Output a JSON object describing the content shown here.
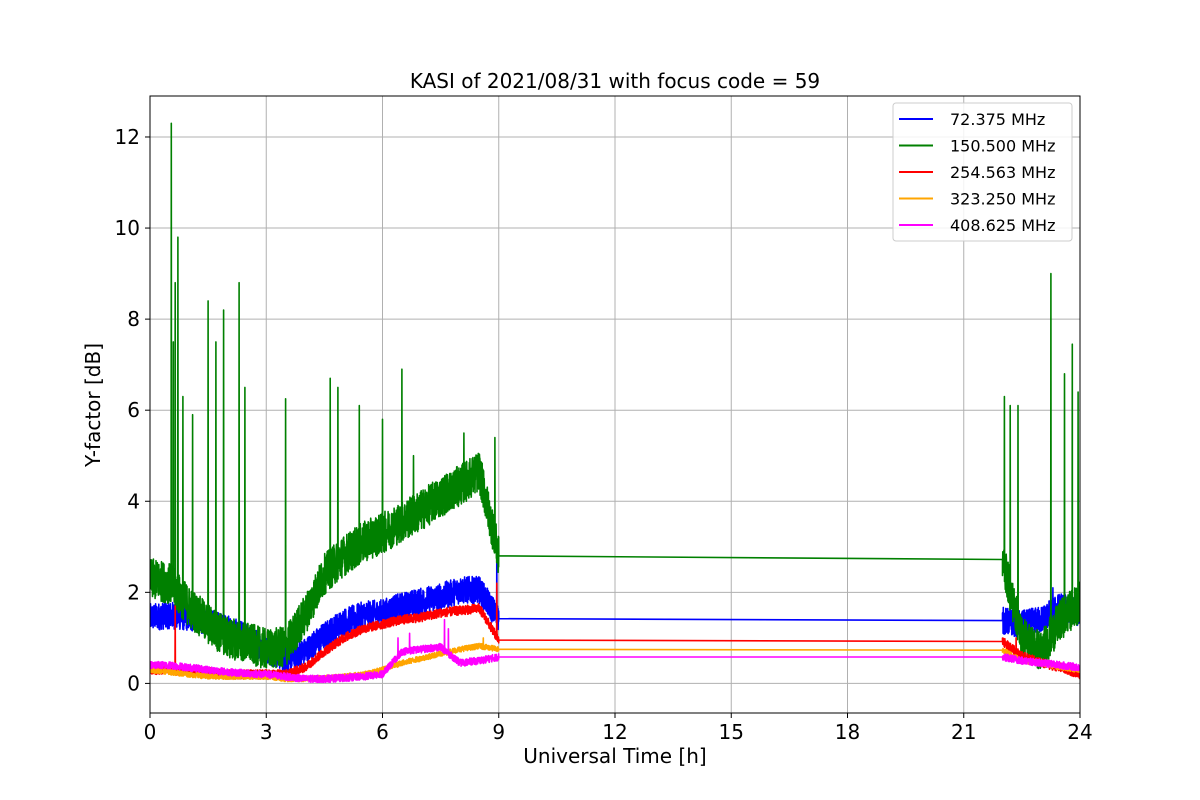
{
  "chart_data": {
    "type": "line",
    "title": "KASI of 2021/08/31 with focus code = 59",
    "xlabel": "Universal Time [h]",
    "ylabel": "Y-factor [dB]",
    "xlim": [
      0,
      24
    ],
    "ylim": [
      -0.65,
      12.9
    ],
    "x_ticks": [
      0,
      3,
      6,
      9,
      12,
      15,
      18,
      21,
      24
    ],
    "y_ticks": [
      0,
      2,
      4,
      6,
      8,
      10,
      12
    ],
    "x_tick_labels": [
      "0",
      "3",
      "6",
      "9",
      "12",
      "15",
      "18",
      "21",
      "24"
    ],
    "y_tick_labels": [
      "0",
      "2",
      "4",
      "6",
      "8",
      "10",
      "12"
    ],
    "grid": true,
    "legend_position": "top-right",
    "data_gap": [
      9.0,
      22.0
    ],
    "series": [
      {
        "name": " 72.375 MHz",
        "color": "#0000ff",
        "noise": 0.3,
        "x": [
          0,
          0.5,
          1,
          1.5,
          2,
          2.5,
          3,
          3.5,
          4,
          4.5,
          5,
          5.5,
          6,
          6.5,
          7,
          7.5,
          8,
          8.5,
          9,
          22,
          22.5,
          23,
          23.5,
          24
        ],
        "y": [
          1.45,
          1.5,
          1.45,
          1.35,
          1.2,
          1.0,
          0.75,
          0.55,
          0.7,
          1.05,
          1.35,
          1.5,
          1.55,
          1.7,
          1.8,
          1.9,
          2.05,
          2.05,
          1.42,
          1.38,
          1.3,
          1.4,
          1.7,
          1.55
        ],
        "spikes": [
          [
            8.95,
            2.8
          ],
          [
            23.3,
            2.1
          ],
          [
            22.35,
            1.7
          ]
        ]
      },
      {
        "name": "150.500 MHz",
        "color": "#008000",
        "noise": 0.45,
        "x": [
          0,
          0.5,
          1,
          1.5,
          2,
          2.5,
          3,
          3.5,
          4,
          4.5,
          5,
          5.5,
          6,
          6.5,
          7,
          7.5,
          8,
          8.5,
          9,
          22,
          22.5,
          23,
          23.5,
          24
        ],
        "y": [
          2.3,
          2.2,
          1.7,
          1.3,
          1.0,
          0.9,
          0.75,
          0.8,
          1.5,
          2.4,
          2.8,
          3.1,
          3.3,
          3.55,
          3.8,
          4.1,
          4.35,
          4.65,
          2.8,
          2.72,
          1.0,
          0.7,
          1.4,
          1.8
        ],
        "spikes": [
          [
            0.55,
            12.3
          ],
          [
            0.65,
            8.8
          ],
          [
            0.72,
            9.8
          ],
          [
            0.6,
            7.5
          ],
          [
            0.85,
            6.3
          ],
          [
            1.1,
            5.9
          ],
          [
            1.5,
            8.4
          ],
          [
            1.9,
            8.2
          ],
          [
            2.3,
            8.8
          ],
          [
            2.45,
            6.5
          ],
          [
            1.7,
            7.5
          ],
          [
            3.5,
            6.25
          ],
          [
            4.65,
            6.7
          ],
          [
            4.85,
            6.5
          ],
          [
            5.4,
            6.1
          ],
          [
            6.0,
            5.8
          ],
          [
            6.5,
            6.9
          ],
          [
            6.8,
            5.0
          ],
          [
            8.1,
            5.5
          ],
          [
            8.9,
            5.4
          ],
          [
            22.05,
            6.3
          ],
          [
            22.2,
            6.1
          ],
          [
            22.4,
            6.1
          ],
          [
            23.25,
            9.0
          ],
          [
            23.6,
            6.8
          ],
          [
            23.8,
            7.45
          ],
          [
            23.95,
            6.4
          ]
        ]
      },
      {
        "name": "254.563 MHz",
        "color": "#ff0000",
        "noise": 0.1,
        "x": [
          0,
          0.5,
          1,
          1.5,
          2,
          2.5,
          3,
          3.5,
          4,
          4.5,
          5,
          5.5,
          6,
          6.5,
          7,
          7.5,
          8,
          8.5,
          9,
          22,
          22.5,
          23,
          23.5,
          24
        ],
        "y": [
          0.3,
          0.3,
          0.25,
          0.25,
          0.2,
          0.2,
          0.2,
          0.2,
          0.35,
          0.7,
          1.0,
          1.2,
          1.3,
          1.4,
          1.45,
          1.55,
          1.6,
          1.65,
          0.95,
          0.92,
          0.6,
          0.45,
          0.35,
          0.2
        ],
        "spikes": [
          [
            0.65,
            1.7
          ],
          [
            8.95,
            2.2
          ],
          [
            22.35,
            1.0
          ]
        ]
      },
      {
        "name": "323.250 MHz",
        "color": "#ffa500",
        "noise": 0.06,
        "x": [
          0,
          0.5,
          1,
          1.5,
          2,
          2.5,
          3,
          3.5,
          4,
          4.5,
          5,
          5.5,
          6,
          6.5,
          7,
          7.5,
          8,
          8.5,
          9,
          22,
          22.5,
          23,
          23.5,
          24
        ],
        "y": [
          0.3,
          0.25,
          0.2,
          0.15,
          0.15,
          0.15,
          0.15,
          0.1,
          0.1,
          0.12,
          0.15,
          0.2,
          0.3,
          0.45,
          0.55,
          0.65,
          0.75,
          0.82,
          0.75,
          0.73,
          0.5,
          0.45,
          0.35,
          0.3
        ],
        "spikes": [
          [
            8.6,
            1.0
          ]
        ]
      },
      {
        "name": "408.625 MHz",
        "color": "#ff00ff",
        "noise": 0.08,
        "x": [
          0,
          0.5,
          1,
          1.5,
          2,
          2.5,
          3,
          3.5,
          4,
          4.5,
          5,
          5.5,
          6,
          6.5,
          7,
          7.5,
          8,
          8.5,
          9,
          22,
          22.5,
          23,
          23.5,
          24
        ],
        "y": [
          0.4,
          0.4,
          0.35,
          0.3,
          0.25,
          0.22,
          0.2,
          0.15,
          0.1,
          0.1,
          0.12,
          0.15,
          0.2,
          0.7,
          0.75,
          0.8,
          0.45,
          0.5,
          0.58,
          0.58,
          0.5,
          0.45,
          0.4,
          0.35
        ],
        "spikes": [
          [
            6.4,
            1.0
          ],
          [
            6.7,
            1.1
          ],
          [
            7.6,
            1.4
          ],
          [
            7.7,
            1.2
          ]
        ]
      }
    ]
  }
}
